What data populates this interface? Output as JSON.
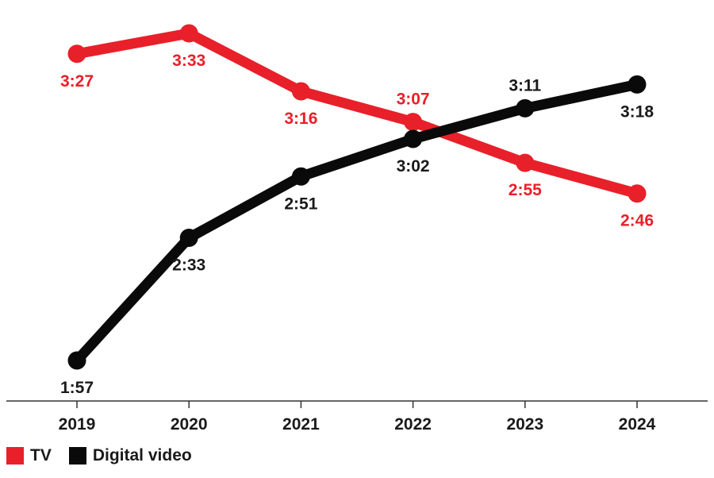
{
  "chart_data": {
    "type": "line",
    "categories": [
      "2019",
      "2020",
      "2021",
      "2022",
      "2023",
      "2024"
    ],
    "series": [
      {
        "name": "TV",
        "color": "#e8202a",
        "values": [
          207,
          213,
          196,
          187,
          175,
          166
        ],
        "labels": [
          "3:27",
          "3:33",
          "3:16",
          "3:07",
          "2:55",
          "2:46"
        ]
      },
      {
        "name": "Digital video",
        "color": "#0a0a0a",
        "values": [
          117,
          153,
          171,
          182,
          191,
          198
        ],
        "labels": [
          "1:57",
          "2:33",
          "2:51",
          "3:02",
          "3:11",
          "3:18"
        ]
      }
    ],
    "ylim": [
      117,
      213
    ],
    "grid": false,
    "legend_position": "bottom-left"
  }
}
